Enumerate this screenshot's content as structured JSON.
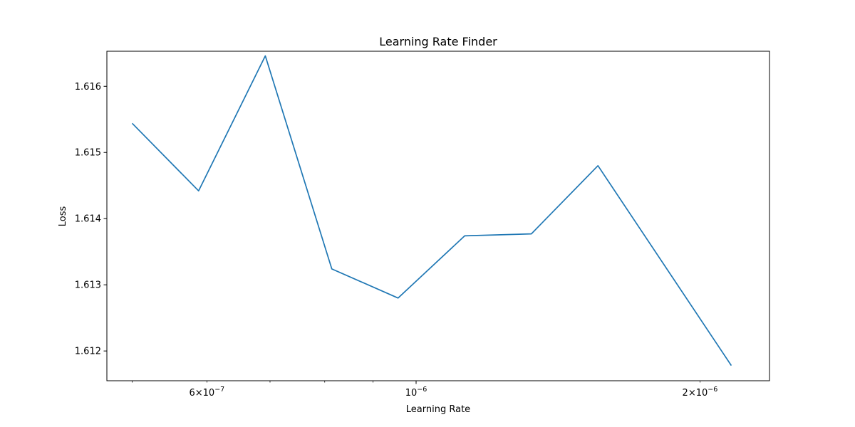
{
  "chart_data": {
    "type": "line",
    "title": "Learning Rate Finder",
    "xlabel": "Learning Rate",
    "ylabel": "Loss",
    "xscale": "log",
    "xlim": [
      4.7e-07,
      2.37e-06
    ],
    "ylim": [
      1.61155,
      1.61653
    ],
    "grid": false,
    "line_color": "#1f77b4",
    "x_major_ticks": [
      {
        "value": 1e-06,
        "base": "10",
        "exp": "−6"
      }
    ],
    "x_minor_ticks_labeled": [
      {
        "value": 6e-07,
        "mant": "6",
        "base": "10",
        "exp": "−7"
      },
      {
        "value": 2e-06,
        "mant": "2",
        "base": "10",
        "exp": "−6"
      }
    ],
    "x_minor_ticks_unlabeled": [
      5e-07,
      7e-07,
      8e-07,
      9e-07
    ],
    "y_ticks": [
      "1.612",
      "1.613",
      "1.614",
      "1.615",
      "1.616"
    ],
    "series": [
      {
        "x": [
          5e-07,
          5.88e-07,
          6.92e-07,
          8.14e-07,
          9.57e-07,
          1.126e-06,
          1.325e-06,
          1.559e-06,
          2.159e-06
        ],
        "y": [
          1.61544,
          1.61442,
          1.61646,
          1.61324,
          1.6128,
          1.61374,
          1.61377,
          1.6148,
          1.61178
        ]
      }
    ]
  }
}
